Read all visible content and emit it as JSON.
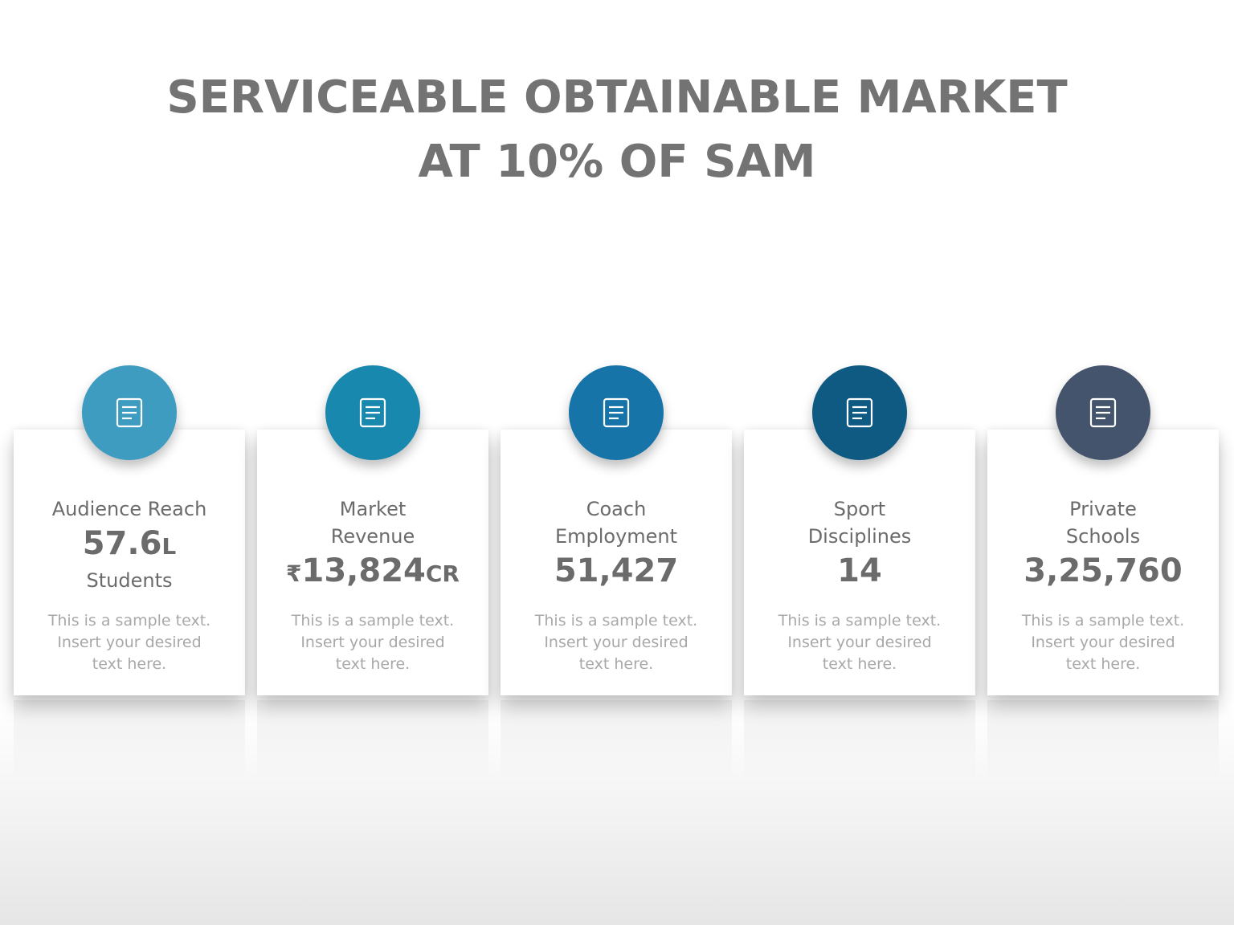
{
  "header": {
    "title_lines": [
      "SERVICEABLE OBTAINABLE MARKET",
      "AT 10% OF SAM"
    ]
  },
  "cards": [
    {
      "label_lines": [
        "Audience Reach"
      ],
      "prefix": null,
      "value": "57.6",
      "suffix": "L",
      "sub": "Students",
      "text_lines": [
        "This is a sample text.",
        "Insert your desired",
        "text here."
      ],
      "color": "#3d9cc0"
    },
    {
      "label_lines": [
        "Market",
        "Revenue"
      ],
      "prefix": "₹",
      "value": "13,824",
      "suffix": "CR",
      "sub": null,
      "text_lines": [
        "This is a sample text.",
        "Insert your desired",
        "text here."
      ],
      "color": "#1888ae"
    },
    {
      "label_lines": [
        "Coach",
        "Employment"
      ],
      "prefix": null,
      "value": "51,427",
      "suffix": null,
      "sub": null,
      "text_lines": [
        "This is a sample text.",
        "Insert your desired",
        "text here."
      ],
      "color": "#1674a8"
    },
    {
      "label_lines": [
        "Sport",
        "Disciplines"
      ],
      "prefix": null,
      "value": "14",
      "suffix": null,
      "sub": null,
      "text_lines": [
        "This is a sample text.",
        "Insert your desired",
        "text here."
      ],
      "color": "#0e5a83"
    },
    {
      "label_lines": [
        "Private",
        "Schools"
      ],
      "prefix": null,
      "value": "3,25,760",
      "suffix": null,
      "sub": null,
      "text_lines": [
        "This is a sample text.",
        "Insert your desired",
        "text here."
      ],
      "color": "#44546c"
    }
  ]
}
